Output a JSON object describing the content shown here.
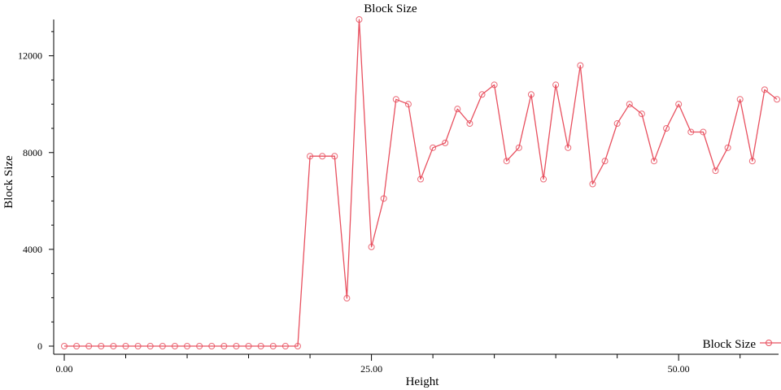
{
  "chart_data": {
    "type": "line",
    "title": "Block Size",
    "xlabel": "Height",
    "ylabel": "Block Size",
    "xlim": [
      0,
      58
    ],
    "ylim": [
      0,
      13500
    ],
    "x_ticks": [
      0,
      25,
      50
    ],
    "x_tick_labels": [
      "0.00",
      "25.00",
      "50.00"
    ],
    "y_ticks": [
      0,
      4000,
      8000,
      12000
    ],
    "y_tick_labels": [
      "0",
      "4000",
      "8000",
      "12000"
    ],
    "grid": false,
    "legend_position": "bottom-right",
    "series": [
      {
        "name": "Block Size",
        "color": "#e8505f",
        "marker": "circle-open",
        "x": [
          0,
          1,
          2,
          3,
          4,
          5,
          6,
          7,
          8,
          9,
          10,
          11,
          12,
          13,
          14,
          15,
          16,
          17,
          18,
          19,
          20,
          21,
          22,
          23,
          24,
          25,
          26,
          27,
          28,
          29,
          30,
          31,
          32,
          33,
          34,
          35,
          36,
          37,
          38,
          39,
          40,
          41,
          42,
          43,
          44,
          45,
          46,
          47,
          48,
          49,
          50,
          51,
          52,
          53,
          54,
          55,
          56,
          57,
          58
        ],
        "values": [
          0,
          0,
          0,
          0,
          0,
          0,
          0,
          0,
          0,
          0,
          0,
          0,
          0,
          0,
          0,
          0,
          0,
          0,
          0,
          0,
          7850,
          7850,
          7850,
          1980,
          13500,
          4100,
          6100,
          10200,
          10000,
          6900,
          8200,
          8400,
          9800,
          9200,
          10400,
          10800,
          7650,
          8200,
          10400,
          6900,
          10800,
          8200,
          11600,
          6700,
          7650,
          9200,
          10000,
          9600,
          7650,
          9000,
          10000,
          8850,
          8850,
          7250,
          8200,
          10200,
          7650,
          10600,
          10200
        ]
      }
    ]
  }
}
